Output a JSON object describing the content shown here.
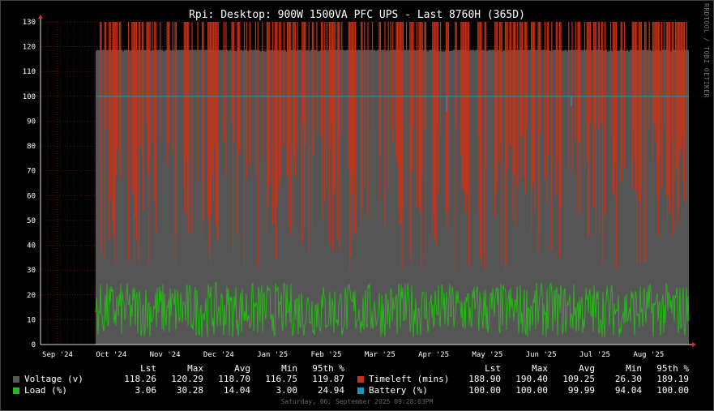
{
  "chart_data": {
    "type": "area",
    "title": "Rpi: Desktop: 900W 1500VA PFC UPS - Last 8760H (365D)",
    "watermark": "RRDTOOL / TOBI OETIKER",
    "timestamp": "Saturday, 06. September 2025 09:28:03PM",
    "ylim": [
      0,
      130
    ],
    "y_ticks": [
      "0",
      "10",
      "20",
      "30",
      "40",
      "50",
      "60",
      "70",
      "80",
      "90",
      "100",
      "110",
      "120",
      "130"
    ],
    "x_ticks": [
      "Sep '24",
      "Oct '24",
      "Nov '24",
      "Dec '24",
      "Jan '25",
      "Feb '25",
      "Mar '25",
      "Apr '25",
      "May '25",
      "Jun '25",
      "Jul '25",
      "Aug '25"
    ],
    "grid": true,
    "legend_placement": "bottom",
    "stats_headers": [
      "Lst",
      "Max",
      "Avg",
      "Min",
      "95th %"
    ],
    "series": [
      {
        "name": "Voltage (v)",
        "color": "#555555",
        "key": "voltage",
        "stats": [
          "118.26",
          "120.29",
          "118.70",
          "116.75",
          "119.87"
        ],
        "level": 118.7
      },
      {
        "name": "Timeleft (mins)",
        "color": "#cc3118",
        "key": "timeleft",
        "stats": [
          "188.90",
          "190.40",
          "109.25",
          "26.30",
          "189.19"
        ]
      },
      {
        "name": "Load (%)",
        "color": "#24bc14",
        "key": "load",
        "stats": [
          "3.06",
          "30.28",
          "14.04",
          "3.00",
          "24.94"
        ]
      },
      {
        "name": "Battery (%)",
        "color": "#1598c3",
        "key": "battery",
        "stats": [
          "100.00",
          "100.00",
          "99.99",
          "94.04",
          "100.00"
        ],
        "level": 100
      }
    ]
  }
}
